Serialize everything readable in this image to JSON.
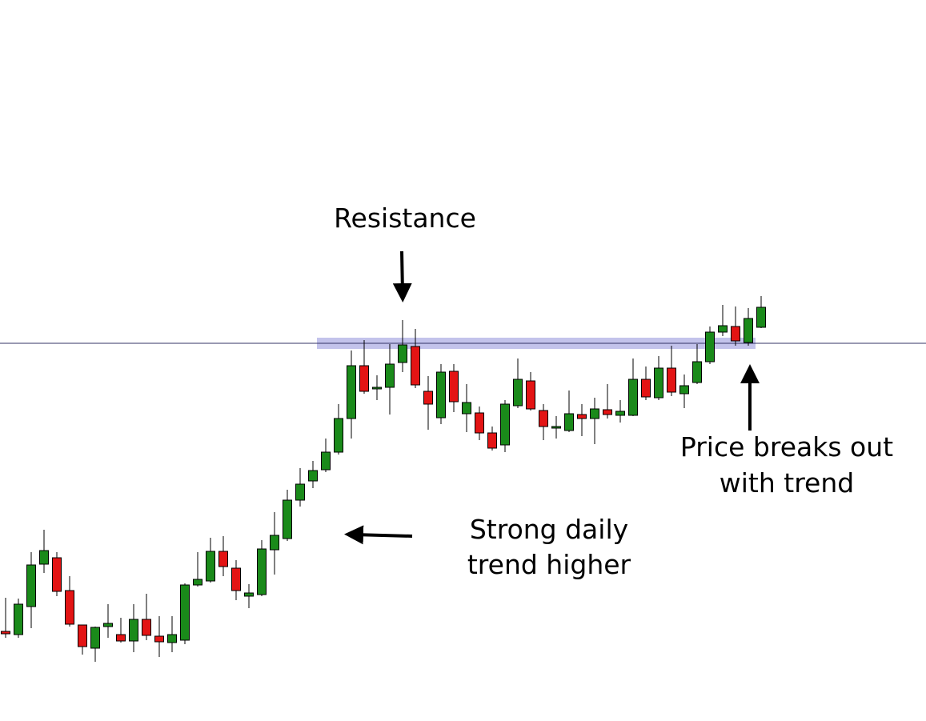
{
  "chart_data": {
    "type": "candlestick",
    "up_color": "#1a8a1a",
    "down_color": "#e31414",
    "ylim": [
      0,
      100
    ],
    "resistance": 84.2,
    "zone": [
      82.8,
      85.6
    ],
    "zone_color": "#b4b4e6",
    "annotations": {
      "resistance": "Resistance",
      "trend": [
        "Strong daily",
        "trend higher"
      ],
      "breakout": [
        "Price breaks out",
        "with trend"
      ]
    },
    "open": [
      12.2,
      11.4,
      18.4,
      29,
      30.6,
      22.4,
      13.8,
      8,
      13.4,
      11.4,
      9.8,
      15.2,
      11,
      9.4,
      10,
      23.8,
      24.8,
      32.2,
      28,
      21,
      21.4,
      32.6,
      35.4,
      45,
      49.8,
      52.6,
      57,
      65.4,
      78.6,
      72.8,
      73.2,
      79.4,
      83.4,
      72.2,
      65.6,
      77.2,
      66.6,
      66.8,
      61.8,
      58.8,
      68.6,
      74.8,
      67.4,
      63,
      62.4,
      66.4,
      65.4,
      67.6,
      66.2,
      66.2,
      75.2,
      70.6,
      78,
      71.6,
      74.4,
      79.6,
      87,
      88.4,
      84.4,
      88.2
    ],
    "high": [
      20.6,
      20.4,
      32,
      37.6,
      32,
      26,
      13.8,
      13.4,
      19,
      15.6,
      19,
      21.6,
      16,
      16,
      24.2,
      32,
      35.6,
      36,
      30,
      24,
      35,
      42,
      47.6,
      53,
      54.8,
      60.4,
      69,
      82.4,
      85,
      76.2,
      84,
      90,
      87.8,
      76,
      79,
      79,
      74,
      68.4,
      63.4,
      70,
      80.4,
      77,
      69,
      66,
      72.4,
      69,
      70.6,
      74,
      70,
      80.4,
      78.4,
      81,
      83.6,
      76.4,
      84,
      88.4,
      93.8,
      93.4,
      93,
      96
    ],
    "low": [
      10.6,
      10.6,
      13,
      26.8,
      21,
      13.4,
      6.4,
      4.6,
      10.6,
      9.4,
      7,
      10,
      5.8,
      7,
      9,
      23.4,
      24.4,
      26,
      20,
      18,
      21,
      26.4,
      34.8,
      43.4,
      48,
      52,
      56.4,
      60.4,
      71.6,
      70,
      66.4,
      77,
      73,
      62.6,
      64,
      67,
      62,
      60,
      57.4,
      57,
      68,
      67.4,
      60,
      60.4,
      62,
      61,
      59,
      65.4,
      64.4,
      66,
      70,
      70,
      71,
      68,
      74,
      79,
      86,
      83.6,
      83.6,
      88
    ],
    "close": [
      11.6,
      19,
      28.8,
      32.4,
      22.2,
      14,
      8.4,
      13.2,
      14.2,
      9.8,
      15.2,
      11.2,
      9.6,
      11.4,
      23.8,
      25.2,
      32.2,
      28.4,
      22.4,
      21.8,
      32.8,
      36.2,
      45,
      49,
      52.4,
      57,
      65.4,
      78.6,
      72.2,
      73.2,
      79,
      83.8,
      73.8,
      69,
      77,
      69.6,
      69.4,
      61.8,
      58,
      69,
      75.2,
      67.8,
      63.4,
      63.4,
      66.6,
      65.4,
      67.8,
      66.4,
      67.2,
      75.2,
      70.8,
      78,
      72,
      73.6,
      79.6,
      87,
      88.6,
      84.8,
      90.4,
      93.2
    ]
  }
}
